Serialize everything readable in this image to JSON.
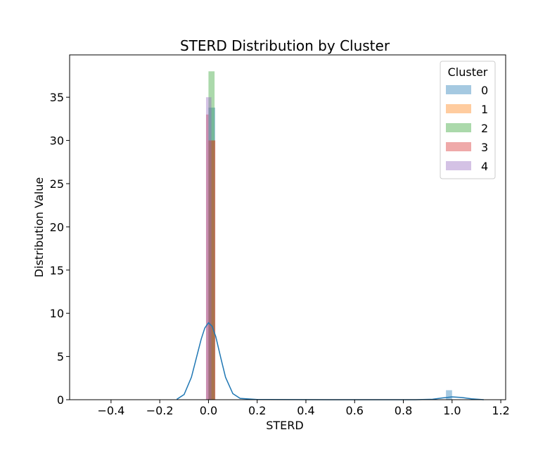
{
  "chart_data": {
    "type": "bar",
    "title": "STERD Distribution by Cluster",
    "xlabel": "STERD",
    "ylabel": "Distribution Value",
    "xlim": [
      -0.57,
      1.22
    ],
    "ylim": [
      0,
      39.9
    ],
    "xticks": [
      -0.4,
      -0.2,
      0.0,
      0.2,
      0.4,
      0.6,
      0.8,
      1.0,
      1.2
    ],
    "xtick_labels": [
      "−0.4",
      "−0.2",
      "0.0",
      "0.2",
      "0.4",
      "0.6",
      "0.8",
      "1.0",
      "1.2"
    ],
    "yticks": [
      0,
      5,
      10,
      15,
      20,
      25,
      30,
      35
    ],
    "yticks_labels": [
      "0",
      "5",
      "10",
      "15",
      "20",
      "25",
      "30",
      "35"
    ],
    "grid": false,
    "legend": {
      "title": "Cluster",
      "placement": "top-right"
    },
    "series": [
      {
        "name": "0",
        "color": "#1f77b4",
        "bars": [
          {
            "x0": 0.0,
            "x1": 0.0275,
            "y": 33.8
          },
          {
            "x0": 0.975,
            "x1": 1.0,
            "y": 1.1
          }
        ],
        "kde": [
          [
            -0.13,
            0.05
          ],
          [
            -0.1,
            0.6
          ],
          [
            -0.07,
            2.6
          ],
          [
            -0.05,
            4.8
          ],
          [
            -0.03,
            7.0
          ],
          [
            -0.015,
            8.3
          ],
          [
            0.0,
            8.9
          ],
          [
            0.015,
            8.5
          ],
          [
            0.03,
            7.3
          ],
          [
            0.05,
            4.9
          ],
          [
            0.07,
            2.6
          ],
          [
            0.1,
            0.7
          ],
          [
            0.13,
            0.15
          ],
          [
            0.2,
            0.02
          ],
          [
            0.5,
            0.0
          ],
          [
            0.85,
            0.0
          ],
          [
            0.92,
            0.05
          ],
          [
            0.96,
            0.2
          ],
          [
            1.0,
            0.33
          ],
          [
            1.04,
            0.25
          ],
          [
            1.08,
            0.1
          ],
          [
            1.13,
            0.0
          ]
        ]
      },
      {
        "name": "1",
        "color": "#ff7f0e",
        "bars": [
          {
            "x0": 0.0,
            "x1": 0.0275,
            "y": 30.0
          }
        ]
      },
      {
        "name": "2",
        "color": "#2ca02c",
        "bars": [
          {
            "x0": 0.0,
            "x1": 0.025,
            "y": 38.0
          }
        ]
      },
      {
        "name": "3",
        "color": "#d62728",
        "bars": [
          {
            "x0": -0.01,
            "x1": 0.0,
            "y": 33.0
          },
          {
            "x0": 0.0,
            "x1": 0.028,
            "y": 30.0
          }
        ]
      },
      {
        "name": "4",
        "color": "#9467bd",
        "bars": [
          {
            "x0": -0.01,
            "x1": 0.012,
            "y": 35.0
          }
        ]
      }
    ]
  }
}
